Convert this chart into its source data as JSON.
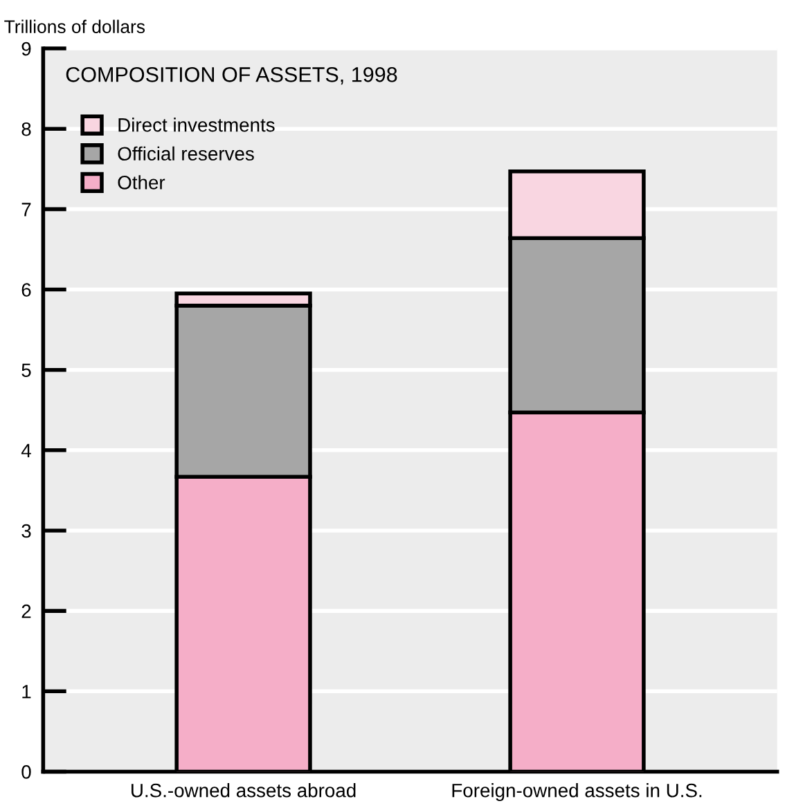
{
  "chart_data": {
    "type": "bar",
    "title": "COMPOSITION OF ASSETS, 1998",
    "ylabel": "Trillions of dollars",
    "categories": [
      "U.S.-owned assets abroad",
      "Foreign-owned assets in U.S."
    ],
    "stacked": true,
    "series": [
      {
        "name": "Other",
        "color": "#f5aec8",
        "values": [
          3.67,
          4.47
        ]
      },
      {
        "name": "Official reserves",
        "color": "#a6a6a6",
        "values": [
          2.13,
          2.17
        ]
      },
      {
        "name": "Direct investments",
        "color": "#f9d6e1",
        "values": [
          0.15,
          0.83
        ]
      }
    ],
    "ylim": [
      0,
      9
    ],
    "yticks": [
      0,
      1,
      2,
      3,
      4,
      5,
      6,
      7,
      8,
      9
    ],
    "grid": "y",
    "legend": "top left"
  }
}
